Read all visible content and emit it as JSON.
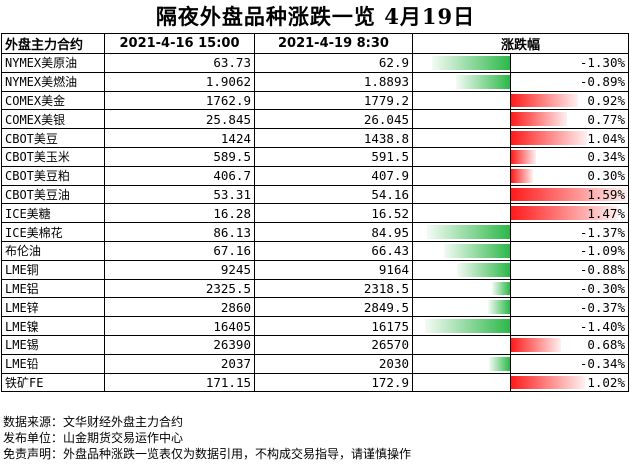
{
  "title": "隔夜外盘品种涨跌一览 4月19日",
  "chart_data": {
    "type": "table",
    "columns": [
      "外盘主力合约",
      "2021-4-16 15:00",
      "2021-4-19 8:30",
      "涨跌幅"
    ],
    "rows": [
      {
        "name": "NYMEX美原油",
        "prev": "63.73",
        "curr": "62.9",
        "change": "-1.30%",
        "value": -1.3
      },
      {
        "name": "NYMEX美燃油",
        "prev": "1.9062",
        "curr": "1.8893",
        "change": "-0.89%",
        "value": -0.89
      },
      {
        "name": "COMEX美金",
        "prev": "1762.9",
        "curr": "1779.2",
        "change": "0.92%",
        "value": 0.92
      },
      {
        "name": "COMEX美银",
        "prev": "25.845",
        "curr": "26.045",
        "change": "0.77%",
        "value": 0.77
      },
      {
        "name": "CBOT美豆",
        "prev": "1424",
        "curr": "1438.8",
        "change": "1.04%",
        "value": 1.04
      },
      {
        "name": "CBOT美玉米",
        "prev": "589.5",
        "curr": "591.5",
        "change": "0.34%",
        "value": 0.34
      },
      {
        "name": "CBOT美豆粕",
        "prev": "406.7",
        "curr": "407.9",
        "change": "0.30%",
        "value": 0.3
      },
      {
        "name": "CBOT美豆油",
        "prev": "53.31",
        "curr": "54.16",
        "change": "1.59%",
        "value": 1.59
      },
      {
        "name": "ICE美糖",
        "prev": "16.28",
        "curr": "16.52",
        "change": "1.47%",
        "value": 1.47
      },
      {
        "name": "ICE美棉花",
        "prev": "86.13",
        "curr": "84.95",
        "change": "-1.37%",
        "value": -1.37
      },
      {
        "name": "布伦油",
        "prev": "67.16",
        "curr": "66.43",
        "change": "-1.09%",
        "value": -1.09
      },
      {
        "name": "LME铜",
        "prev": "9245",
        "curr": "9164",
        "change": "-0.88%",
        "value": -0.88
      },
      {
        "name": "LME铝",
        "prev": "2325.5",
        "curr": "2318.5",
        "change": "-0.30%",
        "value": -0.3
      },
      {
        "name": "LME锌",
        "prev": "2860",
        "curr": "2849.5",
        "change": "-0.37%",
        "value": -0.37
      },
      {
        "name": "LME镍",
        "prev": "16405",
        "curr": "16175",
        "change": "-1.40%",
        "value": -1.4
      },
      {
        "name": "LME锡",
        "prev": "26390",
        "curr": "26570",
        "change": "0.68%",
        "value": 0.68
      },
      {
        "name": "LME铅",
        "prev": "2037",
        "curr": "2030",
        "change": "-0.34%",
        "value": -0.34
      },
      {
        "name": "铁矿FE",
        "prev": "171.15",
        "curr": "172.9",
        "change": "1.02%",
        "value": 1.02
      }
    ],
    "colors": {
      "positive": "#ff1a1a",
      "negative": "#2db84a"
    }
  },
  "footer": {
    "source": "数据来源：文华财经外盘主力合约",
    "publisher": "发布单位：山金期货交易运作中心",
    "disclaimer": "免责声明：外盘品种涨跌一览表仅为数据引用，不构成交易指导，请谨慎操作"
  }
}
